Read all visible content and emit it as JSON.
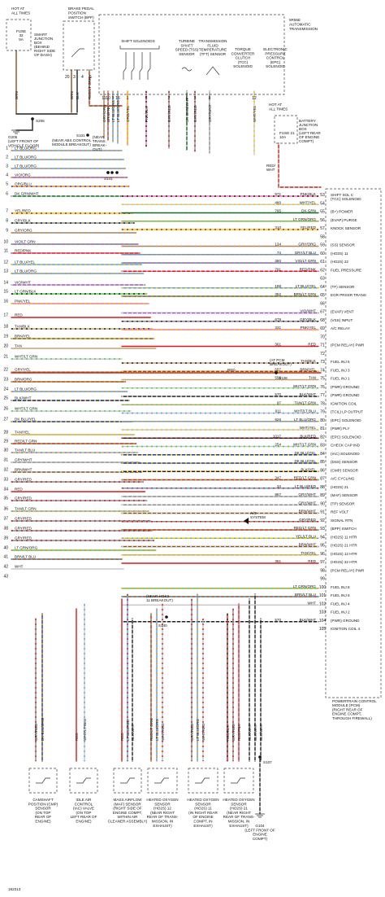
{
  "hot_at_all_times_left": [
    "HOT AT",
    "ALL TIMES"
  ],
  "fuse_box_left": {
    "fuse": [
      "FUSE",
      "32",
      "5A"
    ],
    "label": [
      "SMART",
      "JUNCTION",
      "BOX",
      "(BEHIND",
      "RIGHT SIDE",
      "OF DASH)"
    ]
  },
  "brake_switch": [
    "BRAKE PEDAL",
    "POSITION",
    "SWITCH (BPP)"
  ],
  "transmission_title": [
    "5R55E",
    "AUTOMATIC",
    "TRANSMISSION"
  ],
  "shift_solenoids_label": "SHIFT SOLENOIDS",
  "tss_label": [
    "TURBINE",
    "SHAFT",
    "SPEED (TSS)",
    "SENSOR"
  ],
  "tft_label": [
    "TRANSMISSION",
    "FLUID",
    "TEMPERATURE",
    "(TFT) SENSOR"
  ],
  "tcc_label": [
    "TORQUE",
    "CONVERTER",
    "CLUTCH",
    "(TCC)",
    "SOLENOID"
  ],
  "epc_label": [
    "ELECTRONIC",
    "PRESSURE",
    "CONTROL",
    "(EPC)",
    "SOLENOID"
  ],
  "trans_pin_labels": [
    "GRY/ORG",
    "BRN/PNK",
    "LT BLU/ORG",
    "LT BLU/ORG",
    "ORG/YEL",
    "PNK/BLK",
    "GRY/RED",
    "DK GRN/WHT",
    "GRY/RED",
    "GRY/WHT",
    "WHT/YEL"
  ],
  "trans_pin_numbers": [
    "11",
    "10",
    "9",
    "16",
    "1",
    "6",
    "2",
    "5",
    "3",
    "8",
    "12"
  ],
  "bpp_wires": [
    "BRN",
    "BLK",
    "RED/LT GRN"
  ],
  "bpp_pins": [
    "20",
    "3",
    "4",
    "5"
  ],
  "splices": [
    "S206",
    "S101",
    "S141",
    "S140",
    "S128",
    "S107"
  ],
  "g205": [
    "G205",
    "(LEFT FRONT OF",
    "VEHICLE FLOOR)"
  ],
  "s101_note": [
    "(NEAR ABS CONTROL",
    "MODULE BREAKOUT)"
  ],
  "s141_note": [
    "(NEAR",
    "TRANS.",
    "BREAK-",
    "OUT)"
  ],
  "hot_at_all_times_right": [
    "HOT AT",
    "ALL TIMES"
  ],
  "fuse_box_right": {
    "fuse": [
      "FUSE 21",
      "10A"
    ],
    "label": [
      "BATTERY",
      "JUNCTION",
      "BOX",
      "(LEFT REAR",
      "OF ENGINE",
      "COMPT)"
    ]
  },
  "red_wht": [
    "RED/",
    "WHT"
  ],
  "left_wires": [
    {
      "n": "1",
      "c": "LT BLU/ORG"
    },
    {
      "n": "2",
      "c": "LT BLU/ORG"
    },
    {
      "n": "3",
      "c": "LT BLU/ORG"
    },
    {
      "n": "4",
      "c": "VIO/ORG"
    },
    {
      "n": "5",
      "c": "ORG/BLU"
    },
    {
      "n": "6",
      "c": "DK GRN/WHT"
    },
    {
      "n": "7",
      "c": "YEL/RED"
    },
    {
      "n": "8",
      "c": "GRY/BLK"
    },
    {
      "n": "9",
      "c": "GRY/ORG"
    },
    {
      "n": "10",
      "c": "VIO/LT GRN"
    },
    {
      "n": "11",
      "c": "RED/PNK"
    },
    {
      "n": "12",
      "c": "LT BLU/YEL"
    },
    {
      "n": "13",
      "c": "LT BLU/ORG"
    },
    {
      "n": "14",
      "c": "VIO/WHT"
    },
    {
      "n": "15",
      "c": "LT GRN/BLK"
    },
    {
      "n": "16",
      "c": "PNK/YEL"
    },
    {
      "n": "17",
      "c": "RED"
    },
    {
      "n": "18",
      "c": "TAN/BLK"
    },
    {
      "n": "19",
      "c": "BRN/YEL"
    },
    {
      "n": "20",
      "c": "TAN"
    },
    {
      "n": "21",
      "c": "WHT/LT GRN"
    },
    {
      "n": "22",
      "c": "GRY/YEL"
    },
    {
      "n": "23",
      "c": "BRN/ORG"
    },
    {
      "n": "24",
      "c": "LT BLU/ORG"
    },
    {
      "n": "25",
      "c": "BLK/WHT"
    },
    {
      "n": "26",
      "c": "WHT/LT GRN"
    },
    {
      "n": "27",
      "c": "DK BLU/YEL"
    },
    {
      "n": "28",
      "c": "TAN/YEL"
    },
    {
      "n": "29",
      "c": "RED/LT GRN"
    },
    {
      "n": "30",
      "c": "TAN/LT BLU"
    },
    {
      "n": "31",
      "c": "GRY/WHT"
    },
    {
      "n": "32",
      "c": "BRN/WHT"
    },
    {
      "n": "33",
      "c": "GRY/RED"
    },
    {
      "n": "34",
      "c": "RED"
    },
    {
      "n": "35",
      "c": "GRY/RED"
    },
    {
      "n": "36",
      "c": "TAN/LT GRN"
    },
    {
      "n": "37",
      "c": "GRY/RED"
    },
    {
      "n": "38",
      "c": "GRY/RED"
    },
    {
      "n": "39",
      "c": "GRY/RED"
    },
    {
      "n": "40",
      "c": "LT GRN/ORG"
    },
    {
      "n": "41",
      "c": "BRN/LT BLU"
    },
    {
      "n": "42",
      "c": "WHT"
    },
    {
      "n": "43",
      "c": ""
    }
  ],
  "pcm_pins": [
    {
      "pin": "53",
      "ckt": "971",
      "c": "PNK/BLK",
      "f": [
        "SHIFT SOL C",
        "(TCC) SOLENOID"
      ]
    },
    {
      "pin": "54",
      "ckt": "480",
      "c": "WHT/YEL",
      "f": []
    },
    {
      "pin": "55",
      "ckt": "795",
      "c": "DK GRN",
      "f": [
        "(B+) POWER"
      ]
    },
    {
      "pin": "56",
      "ckt": "",
      "c": "LT GRN/ORG",
      "f": [
        "(EVAP) PURGE"
      ]
    },
    {
      "pin": "57",
      "ckt": "310",
      "c": "YEL/RED",
      "f": [
        "KNOCK SENSOR"
      ]
    },
    {
      "pin": "58",
      "ckt": "",
      "c": "",
      "f": []
    },
    {
      "pin": "59",
      "ckt": "134",
      "c": "GRY/ORG",
      "f": [
        "(SS) SENSOR"
      ]
    },
    {
      "pin": "60",
      "ckt": "74",
      "c": "GRY/LT BLU",
      "f": [
        "(HO2S) 11"
      ]
    },
    {
      "pin": "61",
      "ckt": "360",
      "c": "VIO/LT GRN",
      "f": [
        "(HO2S) 22"
      ]
    },
    {
      "pin": "62",
      "ckt": "791",
      "c": "RED/PNK",
      "f": [
        "FUEL PRESSURE"
      ]
    },
    {
      "pin": "63",
      "ckt": "",
      "c": "",
      "f": []
    },
    {
      "pin": "64",
      "ckt": "198",
      "c": "LT BLU/YEL",
      "f": [
        "(TF) SENSOR"
      ]
    },
    {
      "pin": "65",
      "ckt": "352",
      "c": "BRN/LT GRN",
      "f": [
        "EGR PRSSR TRANS"
      ]
    },
    {
      "pin": "66",
      "ckt": "",
      "c": "",
      "f": []
    },
    {
      "pin": "67",
      "ckt": "",
      "c": "VIO/WHT",
      "f": [
        "(EVAP) VENT"
      ]
    },
    {
      "pin": "68",
      "ckt": "679",
      "c": "GRY/BLK",
      "f": [
        "(VSS) INPUT"
      ]
    },
    {
      "pin": "69",
      "ckt": "331",
      "c": "PNK/YEL",
      "f": [
        "A/C RELAY"
      ]
    },
    {
      "pin": "70",
      "ckt": "",
      "c": "",
      "f": []
    },
    {
      "pin": "71",
      "ckt": "361",
      "c": "RED",
      "f": [
        "(PCM RELAY) PWR"
      ]
    },
    {
      "pin": "72",
      "ckt": "",
      "c": "",
      "f": []
    },
    {
      "pin": "73",
      "ckt": "",
      "c": "TAN/BLK",
      "f": [
        "FUEL INJ 5"
      ]
    },
    {
      "pin": "74",
      "ckt": "557",
      "c": "BRN/YEL",
      "f": [
        "FUEL INJ 3"
      ]
    },
    {
      "pin": "75",
      "ckt": "556",
      "c": "TAN",
      "f": [
        "FUEL INJ 1"
      ]
    },
    {
      "pin": "76",
      "ckt": "",
      "c": "WHT/LT GRN",
      "f": [
        "(PWR) GROUND"
      ]
    },
    {
      "pin": "77",
      "ckt": "570",
      "c": "BLK/WHT",
      "f": [
        "(PWR) GROUND"
      ]
    },
    {
      "pin": "78",
      "ckt": "97",
      "c": "TAN/LT GRN",
      "f": [
        "IGNITION COIL"
      ]
    },
    {
      "pin": "79",
      "ckt": "911",
      "c": "WHT/LT BLU",
      "f": [
        "(TCIL) LP OUTPUT"
      ]
    },
    {
      "pin": "80",
      "ckt": "926",
      "c": "LT BLU/ORG",
      "f": [
        "(EPC) SOLENOID"
      ]
    },
    {
      "pin": "81",
      "ckt": "",
      "c": "WHT/YEL",
      "f": [
        "(PWR) PLY"
      ]
    },
    {
      "pin": "82",
      "ckt": "1017",
      "c": "BLK/RED",
      "f": [
        "(EPC) SOLENOID"
      ]
    },
    {
      "pin": "83",
      "ckt": "254",
      "c": "WHT/LT GRN",
      "f": [
        "CHECK CAP IND"
      ]
    },
    {
      "pin": "84",
      "ckt": "",
      "c": "DK BLU/YEL",
      "f": [
        "(IAC) SOLENOID"
      ]
    },
    {
      "pin": "85",
      "ckt": "",
      "c": "DK BLU/YEL",
      "f": [
        "(DSS) SENSOR"
      ]
    },
    {
      "pin": "86",
      "ckt": "",
      "c": "BLK/YEL",
      "f": [
        "(CMP) SENSOR"
      ]
    },
    {
      "pin": "87",
      "ckt": "347",
      "c": "RED/LT GRN",
      "f": [
        "A/C CYCLING"
      ]
    },
    {
      "pin": "88",
      "ckt": "34",
      "c": "LT BLU/RED",
      "f": [
        "(HO2S) 21"
      ]
    },
    {
      "pin": "89",
      "ckt": "967",
      "c": "GRY/WHT",
      "f": [
        "(MAF) SENSOR"
      ]
    },
    {
      "pin": "90",
      "ckt": "",
      "c": "GRY/WHT",
      "f": [
        "(TP) SENSOR"
      ]
    },
    {
      "pin": "91",
      "ckt": "",
      "c": "BRN/WHT",
      "f": [
        "REF VOLT"
      ]
    },
    {
      "pin": "92",
      "ckt": "",
      "c": "GRY/RED",
      "f": [
        "SIGNAL RTN"
      ]
    },
    {
      "pin": "93",
      "ckt": "",
      "c": "RED/LT GRN",
      "f": [
        "(BPP) SWITCH"
      ]
    },
    {
      "pin": "94",
      "ckt": "",
      "c": "YEL/LT BLU",
      "f": [
        "(HO2S) 11 HTR"
      ]
    },
    {
      "pin": "95",
      "ckt": "",
      "c": "BRN/WHT",
      "f": [
        "(HO2S) 21 HTR"
      ]
    },
    {
      "pin": "96",
      "ckt": "",
      "c": "TAN/YEL",
      "f": [
        "(HO2S) 12 HTR"
      ]
    },
    {
      "pin": "97",
      "ckt": "361",
      "c": "RED",
      "f": [
        "(HO2S) 22 HTR"
      ]
    },
    {
      "pin": "98",
      "ckt": "",
      "c": "",
      "f": [
        "(PCM RELAY) PWR"
      ]
    },
    {
      "pin": "99",
      "ckt": "",
      "c": "",
      "f": []
    },
    {
      "pin": "100",
      "ckt": "",
      "c": "LT GRN/ORG",
      "f": [
        "FUEL INJ 8"
      ]
    },
    {
      "pin": "101",
      "ckt": "",
      "c": "BRN/LT BLU",
      "f": [
        "FUEL INJ 6"
      ]
    },
    {
      "pin": "102",
      "ckt": "",
      "c": "WHT",
      "f": [
        "FUEL INJ 4"
      ]
    },
    {
      "pin": "103",
      "ckt": "",
      "c": "",
      "f": [
        "FUEL INJ 2"
      ]
    },
    {
      "pin": "104",
      "ckt": "570",
      "c": "BLK/WHT",
      "f": [
        "(PWR) GROUND"
      ]
    },
    {
      "pin": "105",
      "ckt": "",
      "c": "",
      "f": [
        "IGNITION COIL 4"
      ]
    }
  ],
  "pcm_label": [
    "POWERTRAIN CONTROL",
    "MODULE (PCM)",
    "(RIGHT REAR OF",
    "ENGINE COMPT,",
    "THROUGH FIREWALL)"
  ],
  "pcm_breakout": [
    "(AT PCM",
    "BREAKOUT)"
  ],
  "hos2_breakout": [
    "(NEAR HOS2",
    "11 BREAKOUT)"
  ],
  "ac_system": [
    "A/C",
    "SYSTEM"
  ],
  "bottom_wires": [
    "GRY/RED",
    "DK BLU/ORG",
    "RED",
    "WHT/LT BLU",
    "RED",
    "LT BLU/RED",
    "BLK/WHT",
    "RED/LT GRN",
    "LT BLU/ORG",
    "WHT/RED",
    "GRY/RED",
    "LT BLU/ORG",
    "WHT/RED",
    "RED/BLK",
    "GRY/RED",
    "RED/PNK",
    "BLK/WHT",
    "BLK/WHT",
    "BLK/WHT"
  ],
  "components": [
    {
      "id": "cmp",
      "label": [
        "CAMSHAFT",
        "POSITION (CMP)",
        "SENSOR",
        "(ON TOP",
        "REAR OF",
        "ENGINE)"
      ]
    },
    {
      "id": "iac",
      "label": [
        "IDLE AIR",
        "CONTROL",
        "(IAC) VALVE",
        "(ON TOP",
        "LEFT REAR OF",
        "ENGINE)"
      ]
    },
    {
      "id": "maf",
      "label": [
        "MASS AIRFLOW",
        "(MAF) SENSOR",
        "(RIGHT SIDE OF",
        "ENGINE COMPT,",
        "WITHIN AIR",
        "CLEANER ASSEMBLY)"
      ]
    },
    {
      "id": "hos2-12",
      "label": [
        "HEATED OXYGEN",
        "SENSOR",
        "(HO2S) 12",
        "(NEAR RIGHT",
        "REAR OF TRANS-",
        "MISSION, IN",
        "EXHAUST)"
      ]
    },
    {
      "id": "hos2-11",
      "label": [
        "HEATED OXYGEN",
        "SENSOR",
        "(HO2S) 11",
        "(IN RIGHT REAR",
        "OF ENGINE",
        "COMPT, IN",
        "EXHAUST)"
      ]
    },
    {
      "id": "hos2-21",
      "label": [
        "HEATED OXYGEN",
        "SENSOR",
        "(HO2S) 21",
        "(NEAR RIGHT",
        "REAR OF TRANS-",
        "MISSION, IN",
        "EXHAUST)"
      ]
    }
  ],
  "g104": [
    "G104",
    "(LEFT FRONT OF",
    "ENGINE",
    "COMPT)"
  ],
  "figure_id": "182313"
}
